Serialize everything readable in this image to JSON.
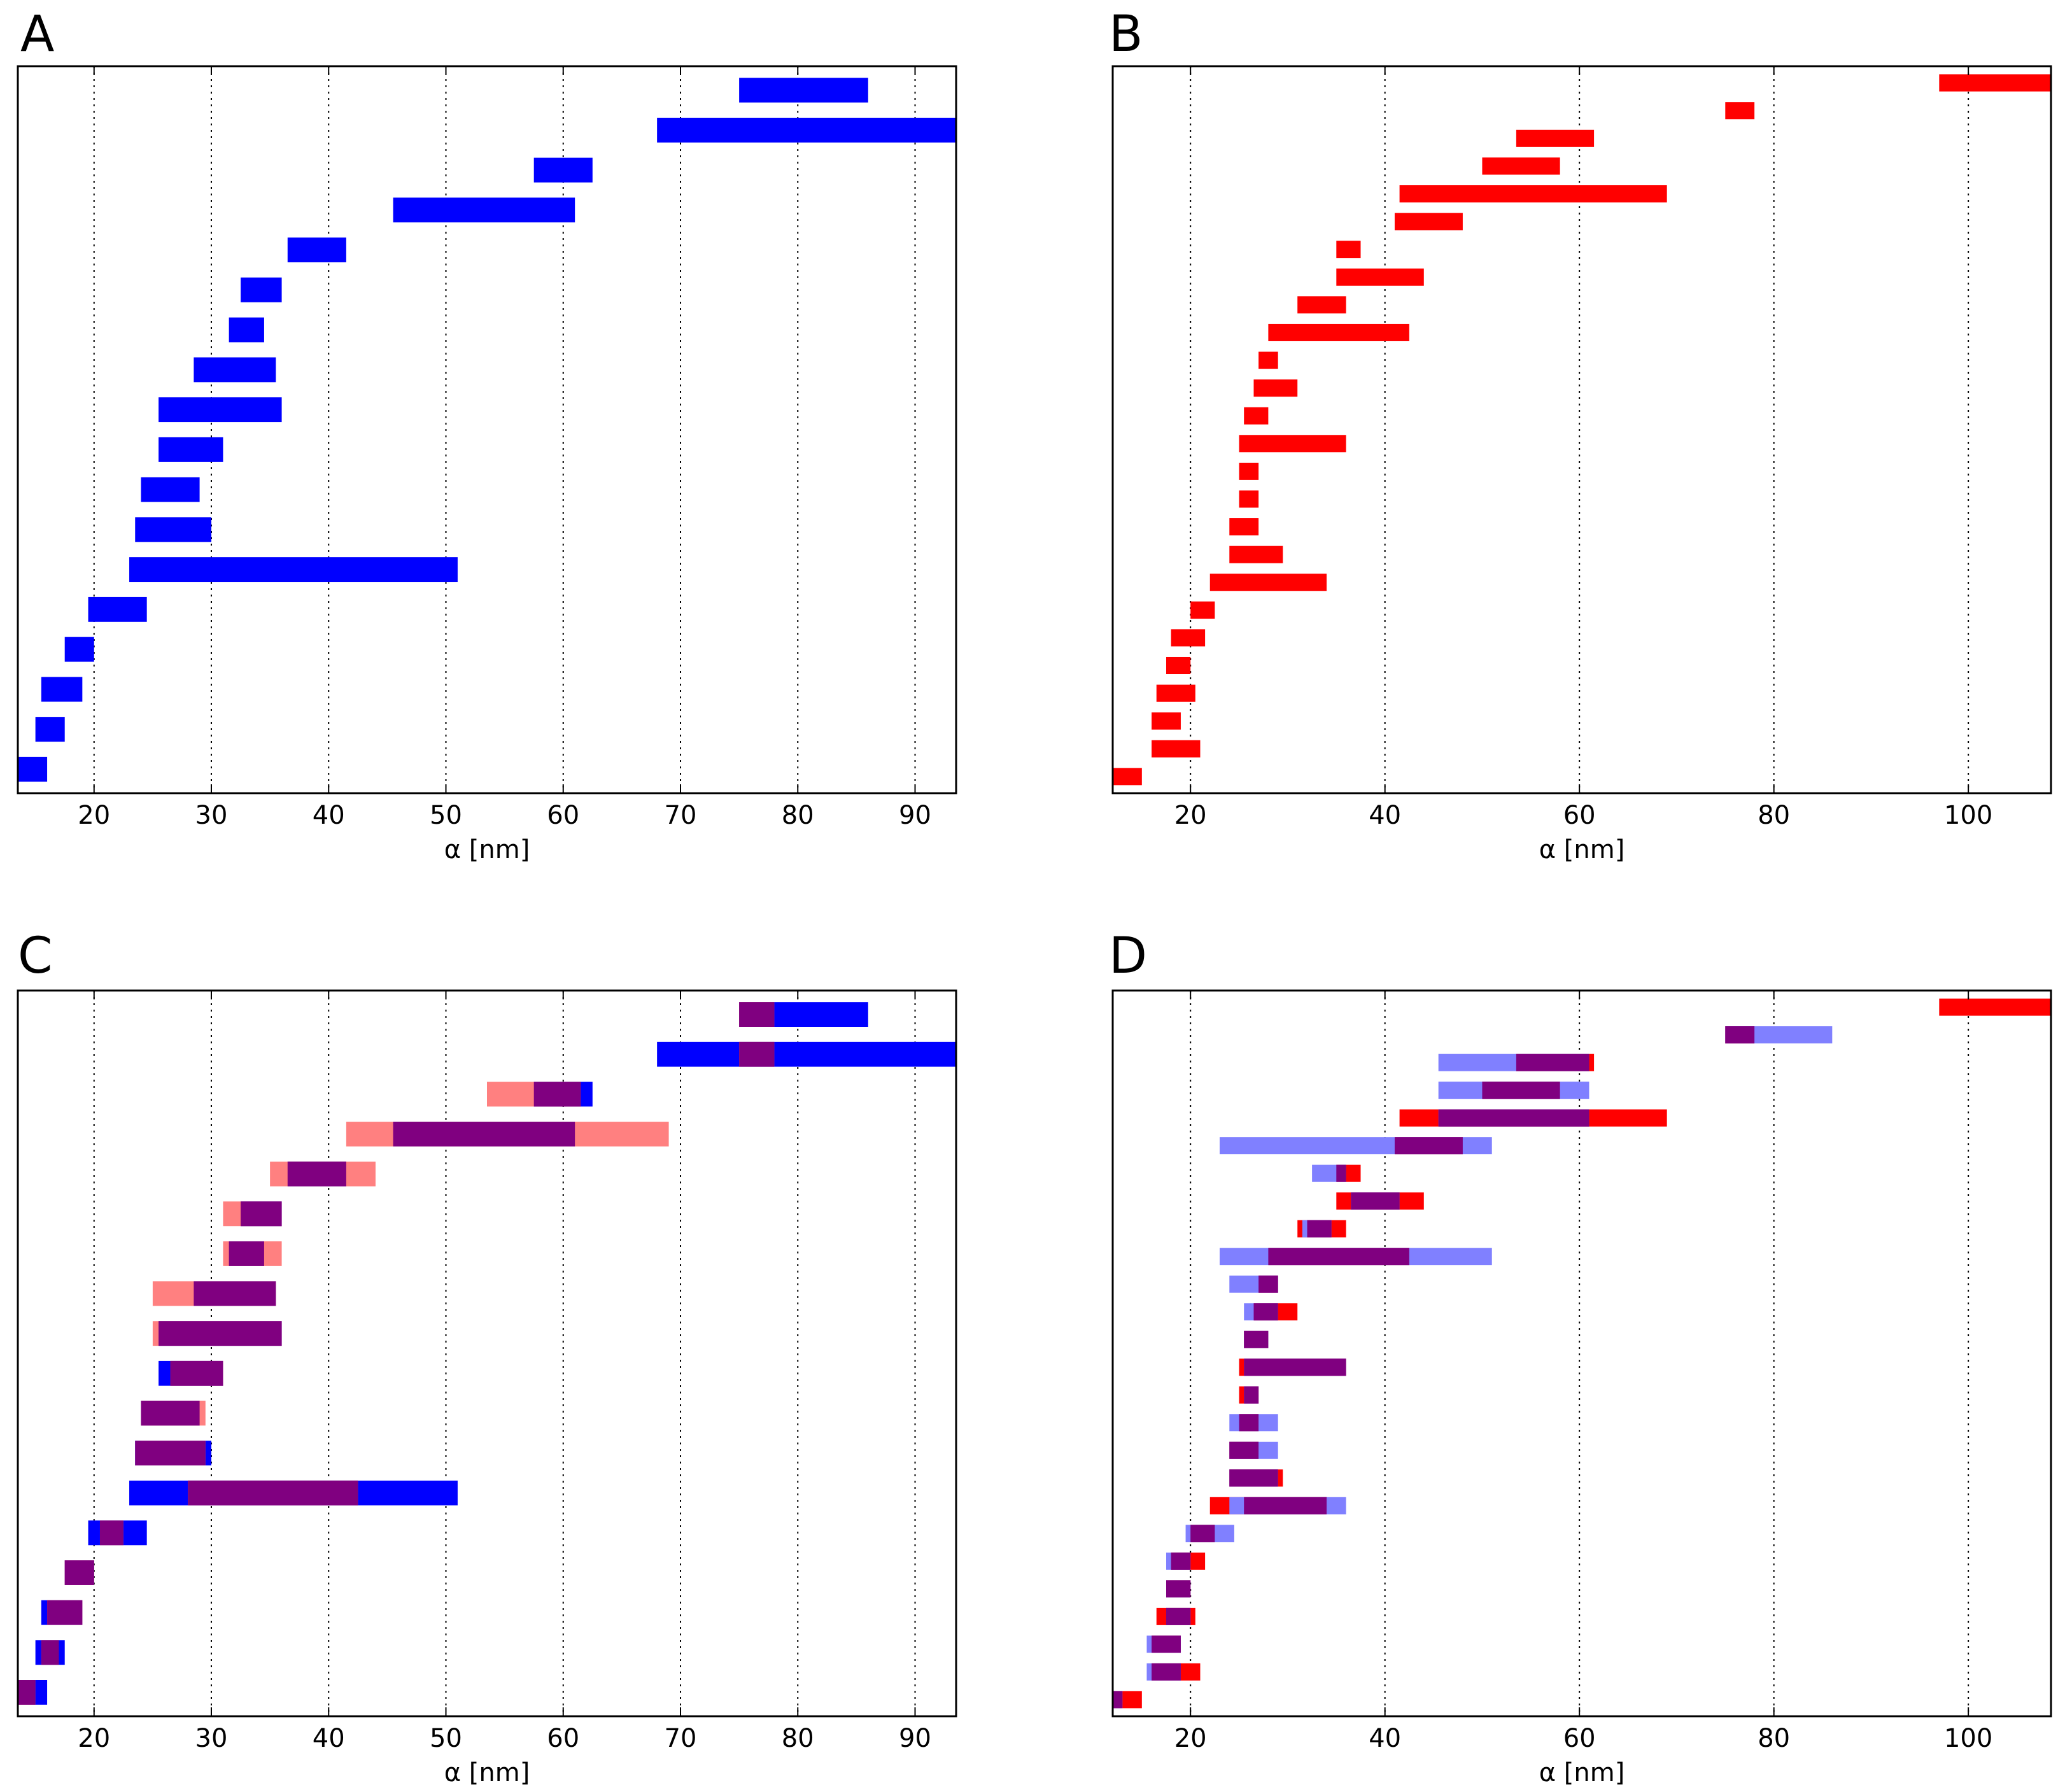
{
  "figure": {
    "xlabel": "α [nm]"
  },
  "colors": {
    "blue": "#0000ff",
    "red": "#ff0000",
    "purple": "#800080",
    "light_red": "#ff8080",
    "light_blue": "#8080ff"
  },
  "chart_data": [
    {
      "panel": "A",
      "type": "bar",
      "orientation": "horizontal-intervals",
      "xlabel": "α [nm]",
      "xlim": [
        13.5,
        93.5
      ],
      "xticks": [
        20,
        30,
        40,
        50,
        60,
        70,
        80,
        90
      ],
      "grid": "vertical dotted",
      "series": [
        {
          "name": "blue",
          "color": "blue",
          "intervals": [
            [
              75,
              86
            ],
            [
              68,
              93.5
            ],
            [
              57.5,
              62.5
            ],
            [
              45.5,
              61
            ],
            [
              36.5,
              41.5
            ],
            [
              32.5,
              36
            ],
            [
              31.5,
              34.5
            ],
            [
              28.5,
              35.5
            ],
            [
              25.5,
              36
            ],
            [
              25.5,
              31
            ],
            [
              24,
              29
            ],
            [
              23.5,
              30
            ],
            [
              23,
              51
            ],
            [
              19.5,
              24.5
            ],
            [
              17.5,
              20
            ],
            [
              15.5,
              19
            ],
            [
              15,
              17.5
            ],
            [
              13.5,
              16
            ]
          ]
        }
      ]
    },
    {
      "panel": "B",
      "type": "bar",
      "orientation": "horizontal-intervals",
      "xlabel": "α [nm]",
      "xlim": [
        12,
        108.5
      ],
      "xticks": [
        20,
        40,
        60,
        80,
        100
      ],
      "grid": "vertical dotted",
      "series": [
        {
          "name": "red",
          "color": "red",
          "intervals": [
            [
              97,
              108.5
            ],
            [
              75,
              78
            ],
            [
              53.5,
              61.5
            ],
            [
              50,
              58
            ],
            [
              41.5,
              69
            ],
            [
              41,
              48
            ],
            [
              35,
              37.5
            ],
            [
              35,
              44
            ],
            [
              31,
              36
            ],
            [
              28,
              42.5
            ],
            [
              27,
              29
            ],
            [
              26.5,
              31
            ],
            [
              25.5,
              28
            ],
            [
              25,
              36
            ],
            [
              25,
              27
            ],
            [
              25,
              27
            ],
            [
              24,
              27
            ],
            [
              24,
              29.5
            ],
            [
              22,
              34
            ],
            [
              20,
              22.5
            ],
            [
              18,
              21.5
            ],
            [
              17.5,
              20
            ],
            [
              16.5,
              20.5
            ],
            [
              16,
              19
            ],
            [
              16,
              21
            ],
            [
              12,
              15
            ]
          ]
        }
      ]
    },
    {
      "panel": "C",
      "type": "bar",
      "orientation": "horizontal-intervals",
      "xlabel": "α [nm]",
      "xlim": [
        13.5,
        93.5
      ],
      "xticks": [
        20,
        30,
        40,
        50,
        60,
        70,
        80,
        90
      ],
      "grid": "vertical dotted",
      "series": [
        {
          "name": "blue",
          "color": "blue",
          "intervals": [
            [
              75,
              86
            ],
            [
              68,
              93.5
            ],
            [
              57.5,
              62.5
            ],
            [
              45.5,
              61
            ],
            [
              36.5,
              41.5
            ],
            [
              32.5,
              36
            ],
            [
              31.5,
              34.5
            ],
            [
              28.5,
              35.5
            ],
            [
              25.5,
              36
            ],
            [
              25.5,
              31
            ],
            [
              24,
              29
            ],
            [
              23.5,
              30
            ],
            [
              23,
              51
            ],
            [
              19.5,
              24.5
            ],
            [
              17.5,
              20
            ],
            [
              15.5,
              19
            ],
            [
              15,
              17.5
            ],
            [
              13.5,
              16
            ]
          ]
        },
        {
          "name": "light_red",
          "color": "light_red",
          "intervals": [
            [
              75,
              78
            ],
            [
              75,
              78
            ],
            [
              53.5,
              61.5
            ],
            [
              41.5,
              69
            ],
            [
              35,
              44
            ],
            [
              31,
              36
            ],
            [
              31,
              36
            ],
            [
              25,
              35.5
            ],
            [
              25,
              36
            ],
            [
              26.5,
              31
            ],
            [
              24,
              29.5
            ],
            [
              24,
              29.5
            ],
            [
              28,
              42.5
            ],
            [
              20.5,
              22.5
            ],
            [
              17.5,
              20
            ],
            [
              16,
              19
            ],
            [
              15.5,
              17
            ],
            [
              13.5,
              15
            ]
          ]
        },
        {
          "name": "overlap",
          "color": "purple",
          "intervals": [
            [
              75,
              78
            ],
            [
              75,
              78
            ],
            [
              57.5,
              61.5
            ],
            [
              45.5,
              61
            ],
            [
              36.5,
              41.5
            ],
            [
              32.5,
              36
            ],
            [
              31.5,
              34.5
            ],
            [
              28.5,
              35.5
            ],
            [
              25.5,
              36
            ],
            [
              26.5,
              31
            ],
            [
              24,
              29
            ],
            [
              23.5,
              29.5
            ],
            [
              28,
              42.5
            ],
            [
              20.5,
              22.5
            ],
            [
              17.5,
              20
            ],
            [
              16,
              19
            ],
            [
              15.5,
              17
            ],
            [
              13.5,
              15
            ]
          ]
        }
      ]
    },
    {
      "panel": "D",
      "type": "bar",
      "orientation": "horizontal-intervals",
      "xlabel": "α [nm]",
      "xlim": [
        12,
        108.5
      ],
      "xticks": [
        20,
        40,
        60,
        80,
        100
      ],
      "grid": "vertical dotted",
      "series": [
        {
          "name": "red",
          "color": "red",
          "intervals": [
            [
              97,
              108.5
            ],
            [
              75,
              78
            ],
            [
              53.5,
              61.5
            ],
            [
              50,
              58
            ],
            [
              41.5,
              69
            ],
            [
              41,
              48
            ],
            [
              35,
              37.5
            ],
            [
              35,
              44
            ],
            [
              31,
              36
            ],
            [
              28,
              42.5
            ],
            [
              27,
              29
            ],
            [
              26.5,
              31
            ],
            [
              25.5,
              28
            ],
            [
              25,
              36
            ],
            [
              25,
              27
            ],
            [
              25,
              27
            ],
            [
              24,
              27
            ],
            [
              24,
              29.5
            ],
            [
              22,
              34
            ],
            [
              20,
              22.5
            ],
            [
              18,
              21.5
            ],
            [
              17.5,
              20
            ],
            [
              16.5,
              20.5
            ],
            [
              16,
              19
            ],
            [
              16,
              21
            ],
            [
              12,
              15
            ]
          ]
        },
        {
          "name": "light_blue",
          "color": "light_blue",
          "intervals": [
            [
              null,
              null
            ],
            [
              75,
              86
            ],
            [
              45.5,
              61
            ],
            [
              45.5,
              61
            ],
            [
              45.5,
              61
            ],
            [
              23,
              51
            ],
            [
              32.5,
              36
            ],
            [
              36.5,
              41.5
            ],
            [
              31.5,
              34.5
            ],
            [
              23,
              51
            ],
            [
              24,
              29
            ],
            [
              25.5,
              29
            ],
            [
              25.5,
              28
            ],
            [
              25.5,
              36
            ],
            [
              25.5,
              27
            ],
            [
              24,
              29
            ],
            [
              24,
              29
            ],
            [
              24,
              29
            ],
            [
              24,
              36
            ],
            [
              19.5,
              24.5
            ],
            [
              17.5,
              20
            ],
            [
              17.5,
              20
            ],
            [
              17.5,
              20
            ],
            [
              15.5,
              19
            ],
            [
              15.5,
              19
            ],
            [
              12,
              13
            ]
          ]
        },
        {
          "name": "overlap",
          "color": "purple",
          "intervals": [
            [
              null,
              null
            ],
            [
              75,
              78
            ],
            [
              53.5,
              61
            ],
            [
              50,
              58
            ],
            [
              45.5,
              61
            ],
            [
              41,
              48
            ],
            [
              35,
              36
            ],
            [
              36.5,
              41.5
            ],
            [
              32,
              34.5
            ],
            [
              28,
              42.5
            ],
            [
              27,
              29
            ],
            [
              26.5,
              29
            ],
            [
              25.5,
              28
            ],
            [
              25.5,
              36
            ],
            [
              25.5,
              27
            ],
            [
              25,
              27
            ],
            [
              24,
              27
            ],
            [
              24,
              29
            ],
            [
              25.5,
              34
            ],
            [
              20,
              22.5
            ],
            [
              18,
              20
            ],
            [
              17.5,
              20
            ],
            [
              17.5,
              20
            ],
            [
              16,
              19
            ],
            [
              16,
              19
            ],
            [
              12,
              13
            ]
          ]
        }
      ]
    }
  ]
}
